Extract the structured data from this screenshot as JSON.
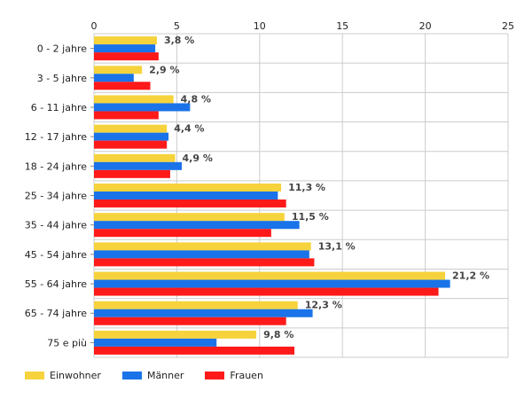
{
  "chart_data": {
    "type": "bar",
    "orientation": "horizontal",
    "categories": [
      "0 - 2 jahre",
      "3 - 5 jahre",
      "6 - 11 jahre",
      "12 - 17 jahre",
      "18 - 24 jahre",
      "25 - 34 jahre",
      "35 - 44 jahre",
      "45 - 54 jahre",
      "55 - 64 jahre",
      "65 - 74 jahre",
      "75 e più"
    ],
    "series": [
      {
        "name": "Einwohner",
        "color": "#f6d33c",
        "values": [
          3.8,
          2.9,
          4.8,
          4.4,
          4.9,
          11.3,
          11.5,
          13.1,
          21.2,
          12.3,
          9.8
        ],
        "labels": [
          "3,8 %",
          "2,9 %",
          "4,8 %",
          "4,4 %",
          "4,9 %",
          "11,3 %",
          "11,5 %",
          "13,1 %",
          "21,2 %",
          "12,3 %",
          "9,8 %"
        ]
      },
      {
        "name": "Männer",
        "color": "#1a73e8",
        "values": [
          3.7,
          2.4,
          5.8,
          4.5,
          5.3,
          11.1,
          12.4,
          13.0,
          21.5,
          13.2,
          7.4
        ]
      },
      {
        "name": "Frauen",
        "color": "#ff1a1a",
        "values": [
          3.9,
          3.4,
          3.9,
          4.4,
          4.6,
          11.6,
          10.7,
          13.3,
          20.8,
          11.6,
          12.1
        ]
      }
    ],
    "xlim": [
      0,
      25
    ],
    "xticks": [
      0,
      5,
      10,
      15,
      20,
      25
    ],
    "grid": true,
    "legend": "bottom-left"
  }
}
